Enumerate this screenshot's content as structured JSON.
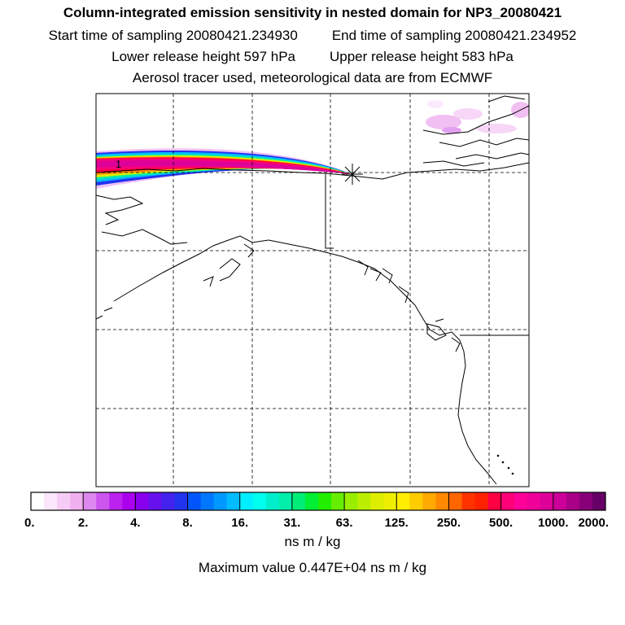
{
  "header": {
    "title": "Column-integrated emission sensitivity in nested domain for NP3_20080421",
    "start_label": "Start time of sampling 20080421.234930",
    "end_label": "End time of sampling 20080421.234952",
    "lower_label": "Lower release height  597 hPa",
    "upper_label": "Upper release height  583 hPa",
    "tracer_line": "Aerosol tracer used, meteorological data are from ECMWF"
  },
  "map": {
    "release_marker": "star-icon",
    "plume_label": "1"
  },
  "legend": {
    "tick_labels": [
      "0.",
      "2.",
      "4.",
      "8.",
      "16.",
      "31.",
      "63.",
      "125.",
      "250.",
      "500.",
      "1000.",
      "2000."
    ],
    "colors": [
      "#ffffff",
      "#fbe6fb",
      "#f6ccf6",
      "#f0b0f0",
      "#dd88ee",
      "#cc55ee",
      "#bb22ee",
      "#aa00ee",
      "#8800ee",
      "#6611ee",
      "#4422ee",
      "#2233ee",
      "#0055ff",
      "#0077ff",
      "#0099ff",
      "#00bbff",
      "#00eeff",
      "#00ffee",
      "#00eecc",
      "#00eeaa",
      "#00ee77",
      "#00ee33",
      "#22ee00",
      "#66ee00",
      "#99ee00",
      "#bbee00",
      "#ddee00",
      "#eeee00",
      "#ffee00",
      "#ffcc00",
      "#ffaa00",
      "#ff8800",
      "#ff6600",
      "#ff3300",
      "#ff2200",
      "#ff0044",
      "#ff0077",
      "#ff0099",
      "#ee0099",
      "#dd0099",
      "#cc0099",
      "#aa0088",
      "#880077",
      "#660066"
    ],
    "units": "ns m / kg",
    "max_value_line": "Maximum value  0.447E+04 ns m / kg"
  }
}
